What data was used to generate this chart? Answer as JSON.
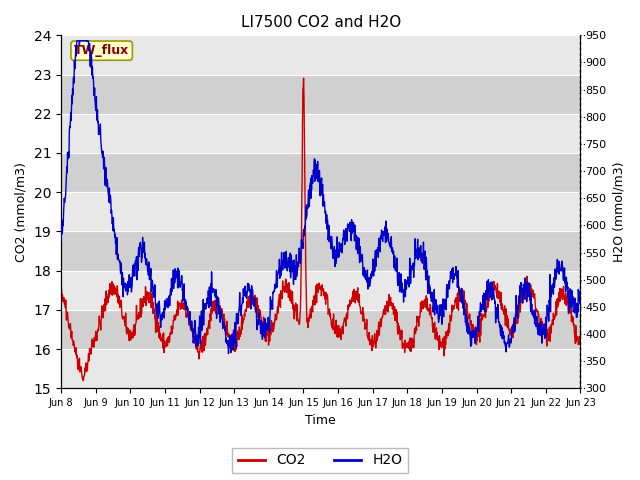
{
  "title": "LI7500 CO2 and H2O",
  "xlabel": "Time",
  "ylabel_left": "CO2 (mmol/m3)",
  "ylabel_right": "H2O (mmol/m3)",
  "co2_ylim": [
    15.0,
    24.0
  ],
  "h2o_ylim": [
    300,
    950
  ],
  "co2_color": "#cc0000",
  "h2o_color": "#0000cc",
  "background_color": "#ffffff",
  "plot_bg_color": "#d8d8d8",
  "stripe_light": "#e8e8e8",
  "stripe_dark": "#d0d0d0",
  "grid_color": "#ffffff",
  "annotation_text": "TW_flux",
  "annotation_bg": "#ffffcc",
  "annotation_fg": "#880000",
  "x_tick_labels": [
    "Jun 8",
    "Jun 9",
    "Jun 10",
    "Jun 11",
    "Jun 12",
    "Jun 13",
    "Jun 14",
    "Jun 15",
    "Jun 16",
    "Jun 17",
    "Jun 18",
    "Jun 19",
    "Jun 20",
    "Jun 21",
    "Jun 22",
    "Jun 23"
  ],
  "num_days": 15,
  "seed": 42,
  "co2_yticks": [
    15.0,
    16.0,
    17.0,
    18.0,
    19.0,
    20.0,
    21.0,
    22.0,
    23.0,
    24.0
  ],
  "h2o_yticks": [
    300,
    350,
    400,
    450,
    500,
    550,
    600,
    650,
    700,
    750,
    800,
    850,
    900,
    950
  ]
}
